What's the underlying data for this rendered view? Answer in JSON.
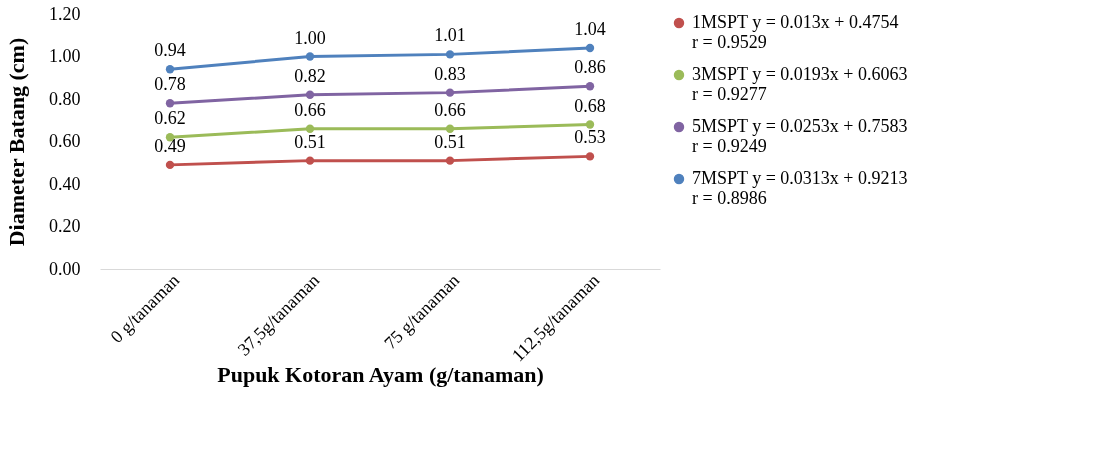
{
  "chart_data": {
    "type": "line",
    "xlabel": "Pupuk Kotoran Ayam (g/tanaman)",
    "ylabel": "Diameter Batang (cm)",
    "categories": [
      "0 g/tanaman",
      "37,5g/tanaman",
      "75 g/tanaman",
      "112,5g/tanaman"
    ],
    "series": [
      {
        "name": "1MSPT y = 0.013x + 0.4754 r = 0.9529",
        "color": "#c0504d",
        "values": [
          0.49,
          0.51,
          0.51,
          0.53
        ],
        "value_labels": [
          "0.49",
          "0.51",
          "0.51",
          "0.53"
        ]
      },
      {
        "name": "3MSPT y = 0.0193x + 0.6063 r = 0.9277",
        "color": "#9bbb59",
        "values": [
          0.62,
          0.66,
          0.66,
          0.68
        ],
        "value_labels": [
          "0.62",
          "0.66",
          "0.66",
          "0.68"
        ]
      },
      {
        "name": "5MSPT y = 0.0253x + 0.7583 r = 0.9249",
        "color": "#8064a2",
        "values": [
          0.78,
          0.82,
          0.83,
          0.86
        ],
        "value_labels": [
          "0.78",
          "0.82",
          "0.83",
          "0.86"
        ]
      },
      {
        "name": "7MSPT y = 0.0313x + 0.9213 r = 0.8986",
        "color": "#4f81bd",
        "values": [
          0.94,
          1.0,
          1.01,
          1.04
        ],
        "value_labels": [
          "0.94",
          "1.00",
          "1.01",
          "1.04"
        ]
      }
    ],
    "ylim": [
      0,
      1.2
    ],
    "yticks": [
      {
        "value": 0,
        "label": "0.00"
      },
      {
        "value": 0.2,
        "label": "0.20"
      },
      {
        "value": 0.4,
        "label": "0.40"
      },
      {
        "value": 0.6,
        "label": "0.60"
      },
      {
        "value": 0.8,
        "label": "0.80"
      },
      {
        "value": 1.0,
        "label": "1.00"
      },
      {
        "value": 1.2,
        "label": "1.20"
      }
    ],
    "grid": false,
    "legend": "right",
    "marker": "circle",
    "line_style": "solid"
  }
}
